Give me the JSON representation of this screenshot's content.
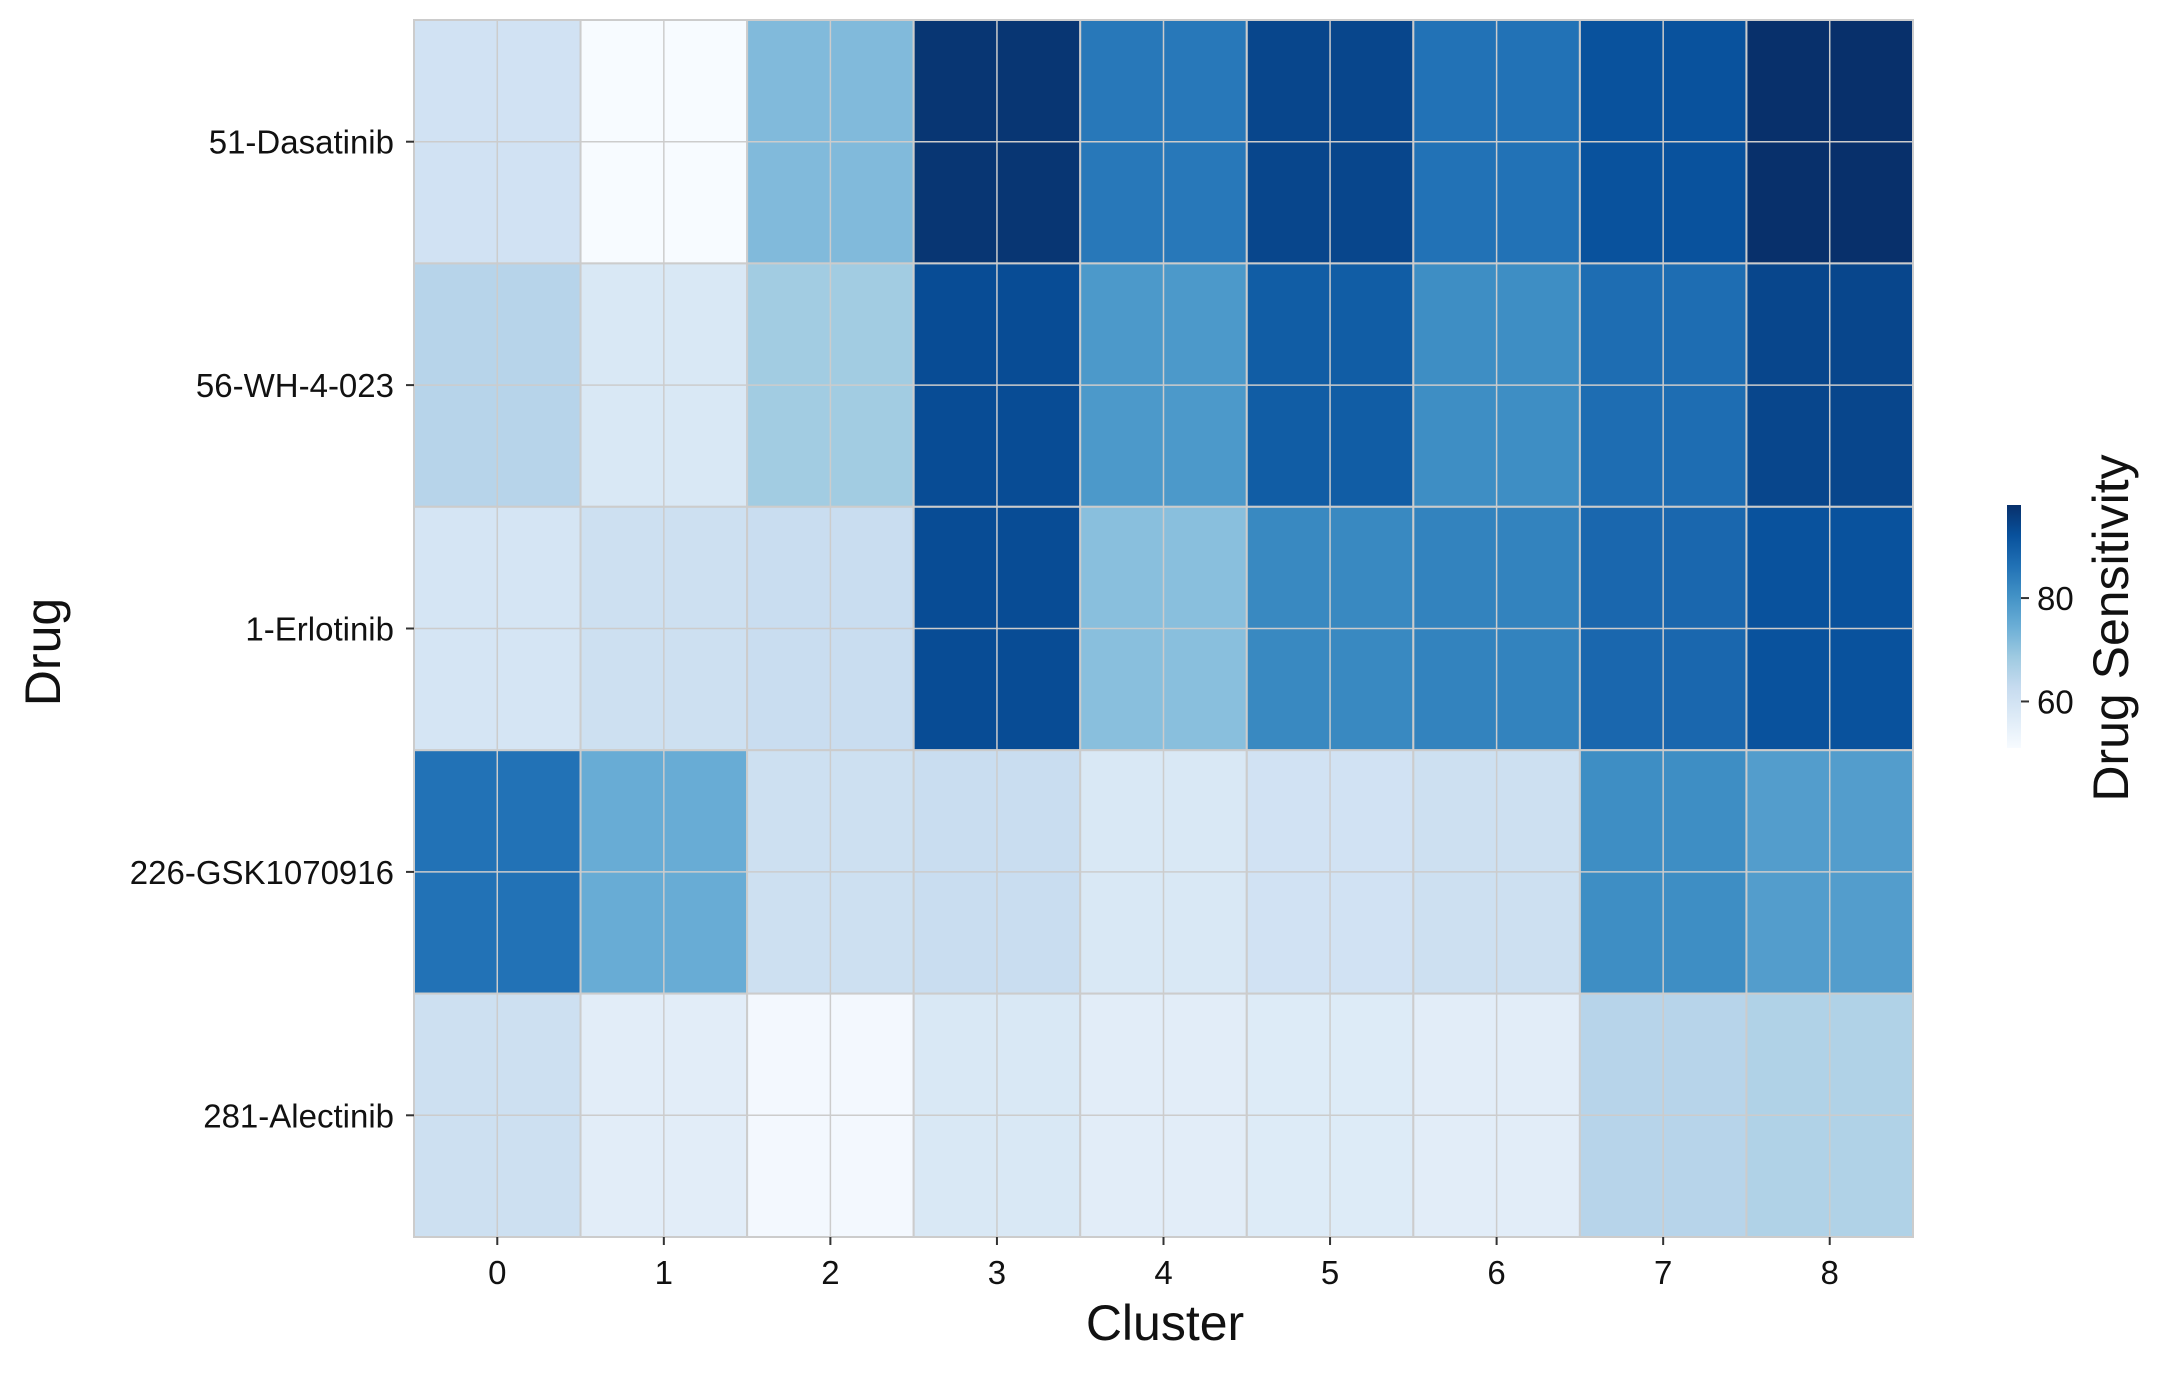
{
  "chart_data": {
    "type": "heatmap",
    "title": "",
    "xlabel": "Cluster",
    "ylabel": "Drug",
    "x_categories": [
      "0",
      "1",
      "2",
      "3",
      "4",
      "5",
      "6",
      "7",
      "8"
    ],
    "y_categories": [
      "51-Dasatinib",
      "56-WH-4-023",
      "1-Erlotinib",
      "226-GSK1070916",
      "281-Alectinib"
    ],
    "values": [
      [
        60,
        51,
        72,
        97,
        85,
        94,
        86,
        92,
        98
      ],
      [
        65,
        58,
        68,
        93,
        79,
        90,
        81,
        87,
        94
      ],
      [
        59,
        61,
        62,
        93,
        71,
        82,
        83,
        88,
        92
      ],
      [
        86,
        75,
        61,
        62,
        58,
        60,
        61,
        81,
        78
      ],
      [
        61,
        56,
        52,
        58,
        56,
        57,
        56,
        65,
        66
      ]
    ],
    "colormap": {
      "name": "Blues",
      "vmin": 51,
      "vmax": 98,
      "stops": [
        "#f7fbff",
        "#deebf7",
        "#c6dbef",
        "#9ecae1",
        "#6baed6",
        "#4292c6",
        "#2171b5",
        "#08519c",
        "#08306b"
      ]
    },
    "colorbar": {
      "label": "Drug Sensitivity",
      "ticks": [
        60,
        80
      ]
    },
    "cell_grid_color": "#cccccc",
    "subgrid_lines": true
  }
}
